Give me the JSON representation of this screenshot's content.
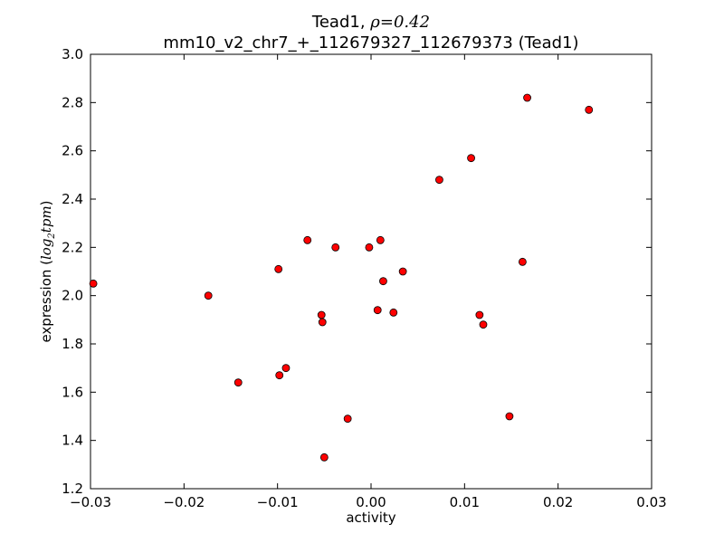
{
  "chart_data": {
    "type": "scatter",
    "title_prefix": "Tead1, ",
    "title_rho_symbol": "ρ",
    "title_rho_value": "=0.42",
    "subtitle": "mm10_v2_chr7_+_112679327_112679373 (Tead1)",
    "xlabel": "activity",
    "ylabel_prefix": "expression (",
    "ylabel_math_base": "log",
    "ylabel_math_sub": "2",
    "ylabel_math_rest": "tpm",
    "ylabel_suffix": ")",
    "xlim": [
      -0.03,
      0.03
    ],
    "ylim": [
      1.2,
      3.0
    ],
    "xticks": [
      -0.03,
      -0.02,
      -0.01,
      0.0,
      0.01,
      0.02,
      0.03
    ],
    "xtick_labels": [
      "−0.03",
      "−0.02",
      "−0.01",
      "0.00",
      "0.01",
      "0.02",
      "0.03"
    ],
    "yticks": [
      1.2,
      1.4,
      1.6,
      1.8,
      2.0,
      2.2,
      2.4,
      2.6,
      2.8,
      3.0
    ],
    "ytick_labels": [
      "1.2",
      "1.4",
      "1.6",
      "1.8",
      "2.0",
      "2.2",
      "2.4",
      "2.6",
      "2.8",
      "3.0"
    ],
    "grid": false,
    "marker_color": "#ff0000",
    "marker_edge_color": "#000000",
    "points": [
      {
        "x": -0.0297,
        "y": 2.05
      },
      {
        "x": -0.0174,
        "y": 2.0
      },
      {
        "x": -0.0142,
        "y": 1.64
      },
      {
        "x": -0.0099,
        "y": 2.11
      },
      {
        "x": -0.0098,
        "y": 1.67
      },
      {
        "x": -0.0091,
        "y": 1.7
      },
      {
        "x": -0.0068,
        "y": 2.23
      },
      {
        "x": -0.0053,
        "y": 1.92
      },
      {
        "x": -0.0052,
        "y": 1.89
      },
      {
        "x": -0.005,
        "y": 1.33
      },
      {
        "x": -0.0038,
        "y": 2.2
      },
      {
        "x": -0.0025,
        "y": 1.49
      },
      {
        "x": -0.0002,
        "y": 2.2
      },
      {
        "x": 0.0007,
        "y": 1.94
      },
      {
        "x": 0.001,
        "y": 2.23
      },
      {
        "x": 0.0013,
        "y": 2.06
      },
      {
        "x": 0.0024,
        "y": 1.93
      },
      {
        "x": 0.0034,
        "y": 2.1
      },
      {
        "x": 0.0073,
        "y": 2.48
      },
      {
        "x": 0.0107,
        "y": 2.57
      },
      {
        "x": 0.0116,
        "y": 1.92
      },
      {
        "x": 0.012,
        "y": 1.88
      },
      {
        "x": 0.0148,
        "y": 1.5
      },
      {
        "x": 0.0162,
        "y": 2.14
      },
      {
        "x": 0.0167,
        "y": 2.82
      },
      {
        "x": 0.0233,
        "y": 2.77
      }
    ]
  }
}
